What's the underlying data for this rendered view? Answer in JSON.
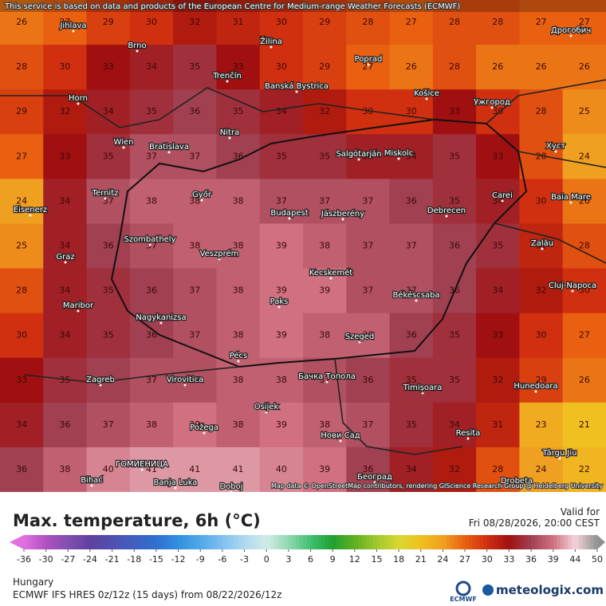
{
  "header": {
    "notice": "This service is based on data and products of the European Centre for Medium-range Weather Forecasts (ECMWF)",
    "attribution": "Map data © OpenStreetMap contributors, rendering GIScience Research Group @ Heidelberg University"
  },
  "map": {
    "cities": [
      "Jihlava",
      "Brno",
      "Žilina",
      "Poprad",
      "Trenčín",
      "Banská Bystrica",
      "Košice",
      "Ужгород",
      "Дрогобич",
      "Horn",
      "Wien",
      "Bratislava",
      "Nitra",
      "Salgótarján",
      "Miskolc",
      "Хуст",
      "Ternitz",
      "Győr",
      "Budapest",
      "Jászberény",
      "Debrecen",
      "Carei",
      "Baia Mare",
      "Eisenerz",
      "Szombathely",
      "Veszprém",
      "Zalău",
      "Graz",
      "Kecskemét",
      "Cluj-Napoca",
      "Maribor",
      "Paks",
      "Békéscsaba",
      "Nagykanizsa",
      "Szeged",
      "Pécs",
      "Zagreb",
      "Virovitica",
      "Бачка Топола",
      "Timișoara",
      "Hunedoara",
      "Osijek",
      "Požega",
      "Нови Сад",
      "Resita",
      "Târgu Jiu",
      "ГОМИЕНИЦА",
      "Bihać",
      "Banja Luka",
      "Doboj",
      "Београд",
      "Drobeta"
    ],
    "temperature_grid": [
      [
        26,
        27,
        29,
        30,
        32,
        31,
        30,
        29,
        28,
        27,
        28,
        28,
        27,
        27
      ],
      [
        28,
        30,
        33,
        34,
        35,
        33,
        30,
        29,
        27,
        26,
        28,
        26,
        26,
        26
      ],
      [
        29,
        32,
        34,
        35,
        36,
        35,
        34,
        32,
        30,
        30,
        33,
        30,
        28,
        25
      ],
      [
        27,
        33,
        35,
        37,
        37,
        36,
        35,
        35,
        34,
        34,
        35,
        33,
        28,
        24
      ],
      [
        24,
        34,
        37,
        38,
        38,
        38,
        37,
        37,
        37,
        36,
        35,
        34,
        30,
        26
      ],
      [
        25,
        34,
        36,
        37,
        38,
        38,
        39,
        38,
        37,
        37,
        36,
        35,
        31,
        28
      ],
      [
        28,
        34,
        35,
        36,
        37,
        38,
        39,
        39,
        37,
        37,
        36,
        34,
        32,
        30
      ],
      [
        30,
        34,
        35,
        36,
        37,
        38,
        39,
        38,
        38,
        36,
        35,
        33,
        30,
        27
      ],
      [
        33,
        35,
        36,
        37,
        37,
        38,
        38,
        37,
        36,
        35,
        35,
        32,
        29,
        26
      ],
      [
        34,
        36,
        37,
        38,
        39,
        38,
        39,
        38,
        37,
        35,
        34,
        31,
        23,
        21
      ],
      [
        36,
        38,
        40,
        41,
        41,
        41,
        40,
        39,
        36,
        34,
        32,
        28,
        24,
        22
      ]
    ]
  },
  "legend": {
    "title": "Max. temperature, 6h (°C)",
    "valid_label": "Valid for",
    "valid_time": "Fri 08/28/2026, 20:00 CEST",
    "ticks": [
      -36,
      -30,
      -27,
      -24,
      -21,
      -18,
      -15,
      -12,
      -9,
      -6,
      -3,
      0,
      3,
      6,
      9,
      12,
      15,
      18,
      21,
      24,
      27,
      30,
      33,
      36,
      39,
      44,
      50
    ],
    "colors": [
      "#e070e0",
      "#b050c0",
      "#8050b0",
      "#6040a0",
      "#5050b0",
      "#4060c0",
      "#3070d0",
      "#3090e0",
      "#50a8e8",
      "#80c0f0",
      "#b0d8f0",
      "#d0ece8",
      "#90d8b0",
      "#40c070",
      "#20a030",
      "#60b020",
      "#a0c830",
      "#d8d830",
      "#f0c020",
      "#f0a020",
      "#e86010",
      "#d03010",
      "#a01010",
      "#a04050",
      "#d07080",
      "#f4d4da",
      "#909090"
    ]
  },
  "footer": {
    "region": "Hungary",
    "model": "ECMWF IFS HRES 0z/12z (15 days) from 08/22/2026/12z",
    "ecmwf": "ECMWF",
    "brand": "meteologix.com"
  }
}
